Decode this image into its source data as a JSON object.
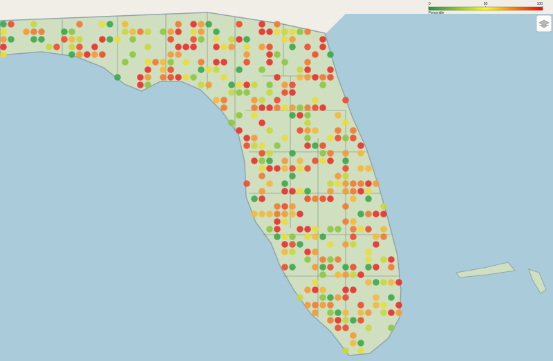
{
  "legend": {
    "title": "Percentile",
    "ticks": [
      0,
      50,
      100
    ],
    "range": [
      0,
      100
    ],
    "colors": [
      "#1a9641",
      "#ffff00",
      "#ff0000"
    ]
  }
}
